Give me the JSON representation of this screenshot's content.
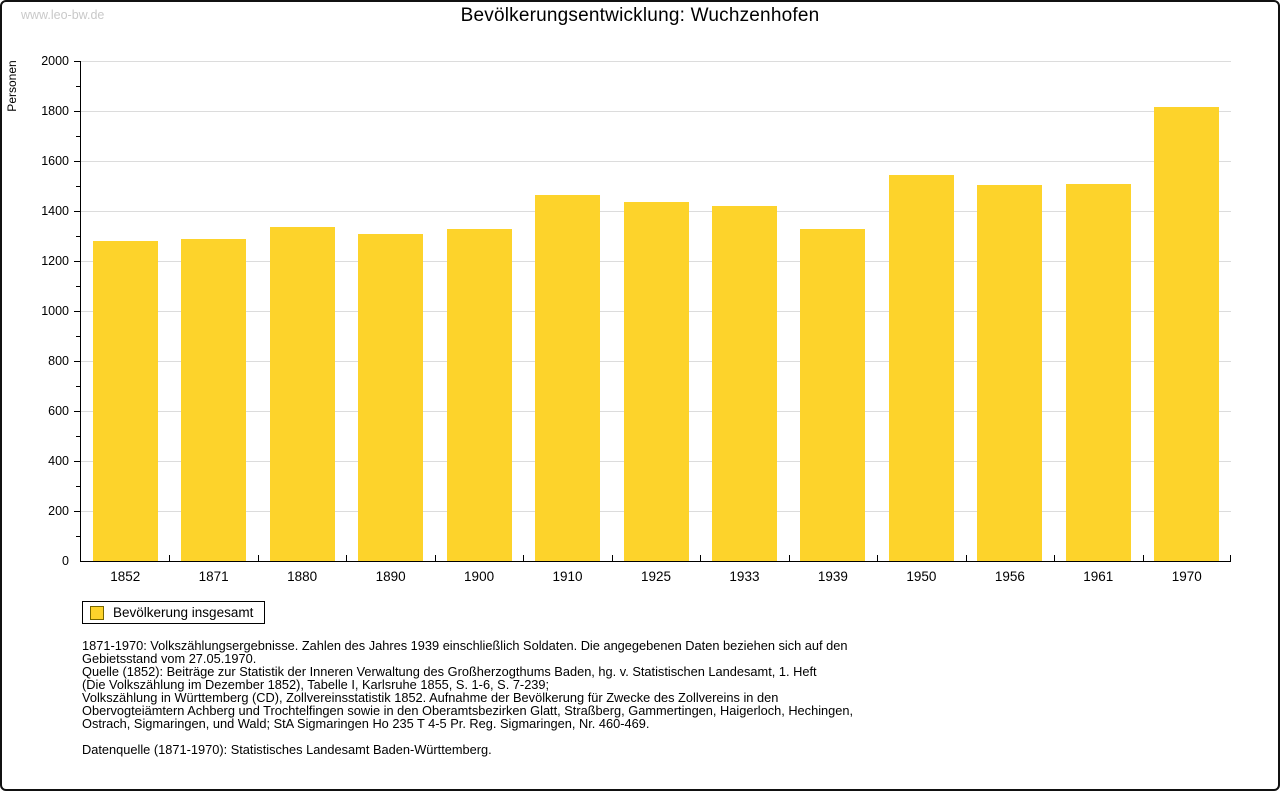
{
  "page": {
    "watermark": "www.leo-bw.de"
  },
  "chart_data": {
    "type": "bar",
    "title": "Bevölkerungsentwicklung: Wuchzenhofen",
    "ylabel": "Personen",
    "xlabel": "",
    "categories": [
      "1852",
      "1871",
      "1880",
      "1890",
      "1900",
      "1910",
      "1925",
      "1933",
      "1939",
      "1950",
      "1956",
      "1961",
      "1970"
    ],
    "values": [
      1280,
      1290,
      1335,
      1310,
      1330,
      1465,
      1435,
      1420,
      1330,
      1545,
      1505,
      1507,
      1815
    ],
    "ylim": [
      0,
      2000
    ],
    "ytick_step": 200,
    "y_minor_step": 100,
    "grid": true,
    "legend_position": "bottom-left",
    "legend": {
      "label": "Bevölkerung insgesamt"
    }
  },
  "colors": {
    "bar": "#fdd32b",
    "grid": "#dcdcdc",
    "axis": "#000000",
    "watermark": "#c9c9c9",
    "swatch_border": "#776600"
  },
  "footer": {
    "lines": [
      "1871-1970: Volkszählungsergebnisse. Zahlen des Jahres 1939 einschließlich Soldaten. Die angegebenen Daten beziehen sich auf den",
      "Gebietsstand vom 27.05.1970.",
      "Quelle (1852): Beiträge zur Statistik der Inneren Verwaltung des Großherzogthums Baden, hg. v. Statistischen Landesamt, 1. Heft",
      "(Die Volkszählung im Dezember 1852), Tabelle I, Karlsruhe 1855, S. 1-6, S. 7-239;",
      "Volkszählung in Württemberg (CD), Zollvereinsstatistik 1852. Aufnahme der Bevölkerung für Zwecke des Zollvereins in den",
      "Obervogteiämtern Achberg und Trochtelfingen sowie in den Oberamtsbezirken Glatt, Straßberg, Gammertingen, Haigerloch, Hechingen,",
      "Ostrach, Sigmaringen, und Wald; StA Sigmaringen Ho 235 T 4-5 Pr. Reg. Sigmaringen, Nr. 460-469."
    ],
    "source": "Datenquelle (1871-1970): Statistisches Landesamt Baden-Württemberg."
  }
}
